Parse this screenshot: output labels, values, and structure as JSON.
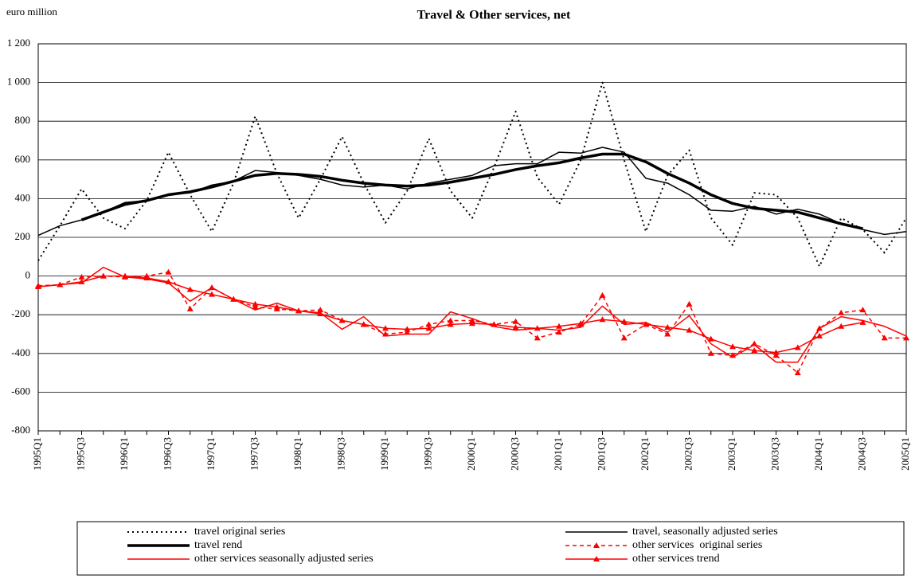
{
  "chart_data": {
    "type": "line",
    "title": "Travel & Other services, net",
    "y_label": "euro million",
    "categories": [
      "1995Q1",
      null,
      "1995Q3",
      null,
      "1996Q1",
      null,
      "1996Q3",
      null,
      "1997Q1",
      null,
      "1997Q3",
      null,
      "1998Q1",
      null,
      "1998Q3",
      null,
      "1999Q1",
      null,
      "1999Q3",
      null,
      "2000Q1",
      null,
      "2000Q3",
      null,
      "2001Q1",
      null,
      "2001Q3",
      null,
      "2002Q1",
      null,
      "2002Q3",
      null,
      "2003Q1",
      null,
      "2003Q3",
      null,
      "2004Q1",
      null,
      "2004Q3",
      null,
      "2005Q1"
    ],
    "ylim": [
      -800,
      1200
    ],
    "yticks": [
      -800,
      -600,
      -400,
      -200,
      0,
      200,
      400,
      600,
      800,
      {
        "value": 1000,
        "label": "1 000"
      },
      {
        "value": 1200,
        "label": "1 200"
      }
    ],
    "grid": true,
    "series": [
      {
        "name": "travel original series",
        "color": "#000000",
        "dash": "2,4",
        "width": 2,
        "marker": false,
        "values": [
          80,
          260,
          450,
          300,
          245,
          390,
          640,
          420,
          230,
          480,
          825,
          530,
          300,
          500,
          720,
          480,
          275,
          440,
          710,
          440,
          300,
          560,
          850,
          510,
          370,
          600,
          1000,
          600,
          230,
          520,
          650,
          300,
          160,
          430,
          420,
          300,
          50,
          300,
          240,
          120,
          300
        ]
      },
      {
        "name": "travel, seasonally adjusted series",
        "color": "#000000",
        "dash": "",
        "width": 1.5,
        "marker": false,
        "values": [
          210,
          260,
          290,
          330,
          380,
          390,
          420,
          430,
          470,
          490,
          545,
          535,
          520,
          500,
          470,
          460,
          470,
          450,
          480,
          500,
          520,
          570,
          580,
          580,
          640,
          635,
          665,
          640,
          505,
          480,
          420,
          340,
          335,
          360,
          320,
          345,
          320,
          270,
          240,
          215,
          230
        ]
      },
      {
        "name": "travel rend",
        "color": "#000000",
        "dash": "",
        "width": 3.5,
        "marker": false,
        "values": [
          null,
          null,
          290,
          330,
          370,
          390,
          420,
          435,
          460,
          490,
          520,
          530,
          525,
          515,
          495,
          480,
          470,
          465,
          470,
          485,
          505,
          525,
          550,
          570,
          585,
          610,
          630,
          630,
          590,
          530,
          480,
          420,
          375,
          350,
          340,
          330,
          300,
          270,
          245,
          null,
          null
        ]
      },
      {
        "name": "other services  original series",
        "color": "#ff0000",
        "dash": "5,4",
        "width": 1.5,
        "marker": true,
        "values": [
          -50,
          -45,
          -5,
          0,
          -5,
          0,
          20,
          -170,
          -60,
          -120,
          -160,
          -170,
          -180,
          -175,
          -230,
          -250,
          -300,
          -290,
          -250,
          -230,
          -230,
          -250,
          -235,
          -320,
          -290,
          -250,
          -100,
          -320,
          -250,
          -300,
          -145,
          -400,
          -410,
          -350,
          -410,
          -500,
          -270,
          -190,
          -175,
          -320,
          -320
        ]
      },
      {
        "name": "other services seasonally adjusted series",
        "color": "#ff0000",
        "dash": "",
        "width": 1.5,
        "marker": false,
        "values": [
          -55,
          -45,
          -35,
          45,
          -5,
          -15,
          -35,
          -130,
          -60,
          -120,
          -175,
          -140,
          -180,
          -190,
          -275,
          -210,
          -310,
          -300,
          -300,
          -185,
          -220,
          -260,
          -280,
          -270,
          -280,
          -265,
          -155,
          -250,
          -240,
          -290,
          -205,
          -350,
          -420,
          -355,
          -445,
          -445,
          -270,
          -210,
          -230,
          -260,
          -310
        ]
      },
      {
        "name": "other services trend",
        "color": "#ff0000",
        "dash": "",
        "width": 1.5,
        "marker": true,
        "values": [
          -55,
          -45,
          -30,
          0,
          0,
          -10,
          -30,
          -70,
          -95,
          -120,
          -145,
          -160,
          -180,
          -195,
          -230,
          -250,
          -270,
          -275,
          -270,
          -250,
          -245,
          -250,
          -265,
          -270,
          -260,
          -245,
          -225,
          -235,
          -250,
          -265,
          -280,
          -325,
          -365,
          -385,
          -395,
          -370,
          -310,
          -260,
          -240,
          null,
          null
        ]
      }
    ]
  }
}
